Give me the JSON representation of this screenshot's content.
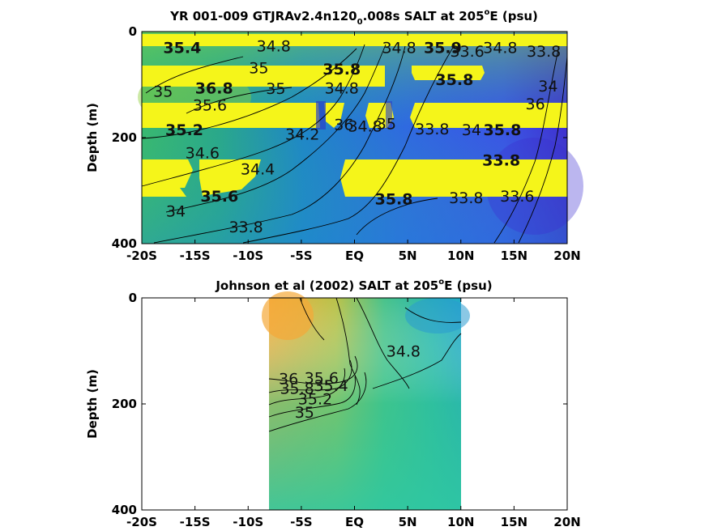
{
  "chart_data": [
    {
      "type": "heatmap",
      "title_main": "YR 001-009 GTJRAv2.4n120",
      "title_sub": "0",
      "title_rest": ".008s SALT at 205",
      "title_sup": "o",
      "title_end": "E (psu)",
      "ylabel": "Depth (m)",
      "xlim": [
        -20,
        20
      ],
      "ylim": [
        400,
        0
      ],
      "x_ticks": [
        "-20S",
        "-15S",
        "-10S",
        "-5S",
        "EQ",
        "5N",
        "10N",
        "15N",
        "20N"
      ],
      "y_ticks": [
        "0",
        "200",
        "400"
      ],
      "contour_labels": [
        {
          "text": "35.4",
          "lat": -16.2,
          "depth": 30,
          "bold": true
        },
        {
          "text": "34.8",
          "lat": -7.6,
          "depth": 27
        },
        {
          "text": "35",
          "lat": -9.0,
          "depth": 68
        },
        {
          "text": "35.8",
          "lat": -1.2,
          "depth": 70,
          "bold": true
        },
        {
          "text": "35",
          "lat": -18.0,
          "depth": 112
        },
        {
          "text": "36.8",
          "lat": -13.2,
          "depth": 106,
          "bold": true
        },
        {
          "text": "35",
          "lat": -7.4,
          "depth": 107
        },
        {
          "text": "34.8",
          "lat": -1.2,
          "depth": 106
        },
        {
          "text": "35.6",
          "lat": -13.6,
          "depth": 138,
          "bold": false
        },
        {
          "text": "34.2",
          "lat": -4.9,
          "depth": 193
        },
        {
          "text": "35.2",
          "lat": -16.0,
          "depth": 185,
          "bold": true
        },
        {
          "text": "34.6",
          "lat": -14.3,
          "depth": 228
        },
        {
          "text": "36",
          "lat": -1.0,
          "depth": 175
        },
        {
          "text": "34.8",
          "lat": 1.0,
          "depth": 178
        },
        {
          "text": "35",
          "lat": 3.0,
          "depth": 173
        },
        {
          "text": "33.8",
          "lat": 7.3,
          "depth": 183
        },
        {
          "text": "34",
          "lat": 11.0,
          "depth": 185
        },
        {
          "text": "35.8",
          "lat": 13.9,
          "depth": 185,
          "bold": true
        },
        {
          "text": "34.4",
          "lat": -9.1,
          "depth": 259
        },
        {
          "text": "33.8",
          "lat": 13.8,
          "depth": 242,
          "bold": true
        },
        {
          "text": "34",
          "lat": -16.8,
          "depth": 338
        },
        {
          "text": "35.6",
          "lat": -12.7,
          "depth": 310,
          "bold": true
        },
        {
          "text": "35.8",
          "lat": 3.7,
          "depth": 315,
          "bold": true
        },
        {
          "text": "33.8",
          "lat": 10.5,
          "depth": 313
        },
        {
          "text": "33.6",
          "lat": 15.3,
          "depth": 310
        },
        {
          "text": "33.8",
          "lat": -10.2,
          "depth": 368
        },
        {
          "text": "34",
          "lat": 18.2,
          "depth": 102
        },
        {
          "text": "36",
          "lat": 17.0,
          "depth": 136
        },
        {
          "text": "33.8",
          "lat": 17.8,
          "depth": 37
        },
        {
          "text": "33.6",
          "lat": 10.6,
          "depth": 37
        },
        {
          "text": "34.8",
          "lat": 4.2,
          "depth": 30
        },
        {
          "text": "35.9",
          "lat": 8.3,
          "depth": 30,
          "bold": true
        },
        {
          "text": "34.8",
          "lat": 13.7,
          "depth": 30
        },
        {
          "text": "35.8",
          "lat": 9.4,
          "depth": 90,
          "bold": true
        }
      ]
    },
    {
      "type": "heatmap",
      "title_main": "Johnson et al (2002) SALT at 205",
      "title_sup": "o",
      "title_end": "E (psu)",
      "ylabel": "Depth (m)",
      "xlim": [
        -20,
        20
      ],
      "ylim": [
        400,
        0
      ],
      "data_extent_lat": [
        -8,
        10
      ],
      "x_ticks": [
        "-20S",
        "-15S",
        "-10S",
        "-5S",
        "EQ",
        "5N",
        "10N",
        "15N",
        "20N"
      ],
      "y_ticks": [
        "0",
        "200",
        "400"
      ],
      "contour_labels": [
        {
          "text": "34.8",
          "lat": 4.6,
          "depth": 100
        },
        {
          "text": "35.6",
          "lat": -3.1,
          "depth": 150
        },
        {
          "text": "35.4",
          "lat": -2.2,
          "depth": 165
        },
        {
          "text": "35.2",
          "lat": -3.7,
          "depth": 190
        },
        {
          "text": "35",
          "lat": -4.7,
          "depth": 215
        },
        {
          "text": "36",
          "lat": -6.2,
          "depth": 152
        },
        {
          "text": "35.8",
          "lat": -5.4,
          "depth": 170
        }
      ]
    }
  ]
}
